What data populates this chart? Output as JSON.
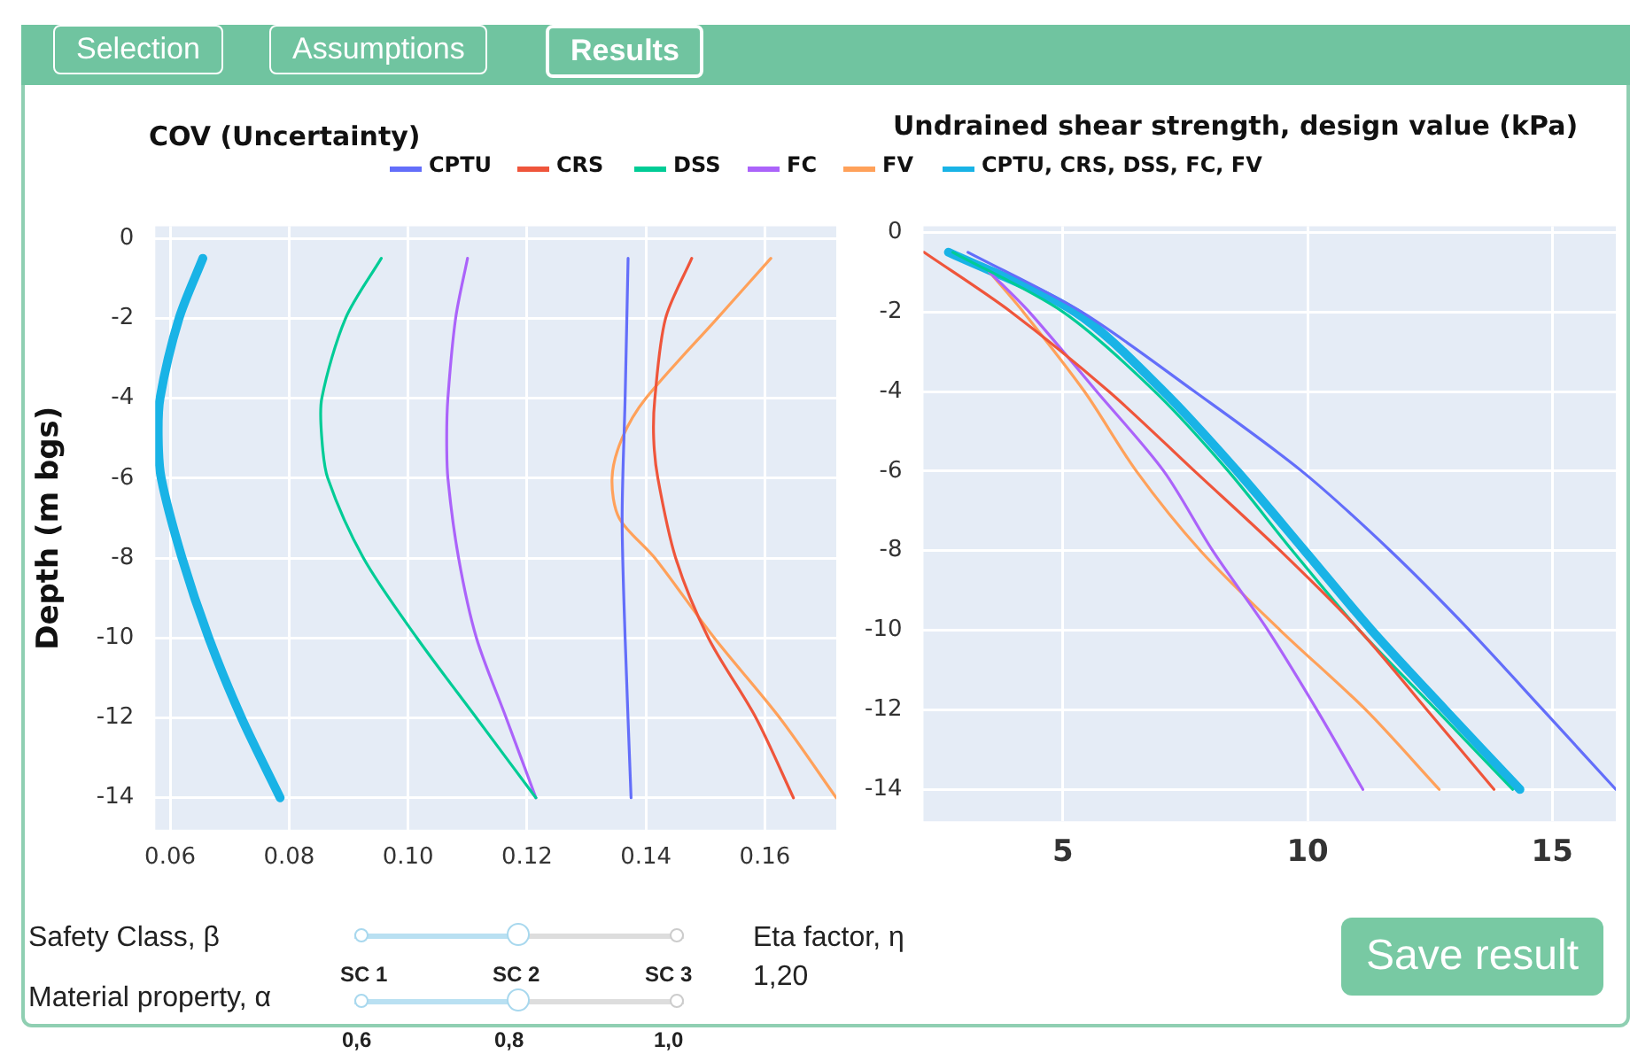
{
  "chart_data": [
    {
      "type": "line",
      "title": "COV (Uncertainty)",
      "ylabel": "Depth (m bgs)",
      "legend": "top",
      "grid": true,
      "xlim": [
        0.0575,
        0.172
      ],
      "xticks": [
        0.06,
        0.08,
        {
          "value": 0.1,
          "label": "0.10"
        },
        0.12,
        0.14,
        0.16
      ],
      "ylim": [
        -14.8,
        0.3
      ],
      "yticks": [
        0,
        -2,
        -4,
        -6,
        -8,
        -10,
        -12,
        -14
      ],
      "series": [
        {
          "name": "CPTU",
          "color": "#636efa",
          "x": [
            0.137,
            0.1365,
            0.136,
            0.1365,
            0.1375
          ],
          "values": [
            -0.5,
            -4,
            -7,
            -10,
            -14
          ]
        },
        {
          "name": "CRS",
          "color": "#ef553b",
          "x": [
            0.1477,
            0.1433,
            0.1415,
            0.1413,
            0.142,
            0.145,
            0.1505,
            0.1585,
            0.1648
          ],
          "values": [
            -0.5,
            -2,
            -4,
            -5,
            -6,
            -8,
            -10,
            -12,
            -14
          ]
        },
        {
          "name": "DSS",
          "color": "#00cc96",
          "x": [
            0.0955,
            0.0895,
            0.0855,
            0.0855,
            0.0865,
            0.0925,
            0.1015,
            0.1115,
            0.1215
          ],
          "values": [
            -0.5,
            -2,
            -4,
            -5,
            -6,
            -8,
            -10,
            -12,
            -14
          ]
        },
        {
          "name": "FC",
          "color": "#ab63fa",
          "x": [
            0.11,
            0.108,
            0.1067,
            0.1065,
            0.1067,
            0.1085,
            0.1115,
            0.1165,
            0.1215
          ],
          "values": [
            -0.5,
            -2,
            -4,
            -5,
            -6,
            -8,
            -10,
            -12,
            -14
          ]
        },
        {
          "name": "FV",
          "color": "#ffa15a",
          "x": [
            0.161,
            0.152,
            0.14,
            0.136,
            0.1343,
            0.1355,
            0.1415,
            0.1515,
            0.1625,
            0.172
          ],
          "values": [
            -0.5,
            -2,
            -4,
            -5,
            -6,
            -7,
            -8,
            -10,
            -12,
            -14
          ]
        },
        {
          "name": "CPTU, CRS, DSS, FC, FV",
          "color": "#19b3e6",
          "x": [
            0.0655,
            0.0615,
            0.0583,
            0.058,
            0.0585,
            0.062,
            0.0665,
            0.072,
            0.0785
          ],
          "values": [
            -0.5,
            -2,
            -4,
            -5,
            -6,
            -8,
            -10,
            -12,
            -14
          ]
        }
      ]
    },
    {
      "type": "line",
      "title": "Undrained shear strength, design value (kPa)",
      "grid": true,
      "xlim": [
        2.15,
        16.3
      ],
      "xticks": [
        5,
        10,
        15
      ],
      "ylim": [
        -14.8,
        0.15
      ],
      "yticks": [
        0,
        -2,
        -4,
        -6,
        -8,
        -10,
        -12,
        -14
      ],
      "series": [
        {
          "color": "#636efa",
          "x": [
            3.06,
            5.38,
            7.69,
            9.88,
            11.69,
            13.31,
            14.81,
            16.3
          ],
          "values": [
            -0.5,
            -2,
            -4,
            -6,
            -8,
            -10,
            -12,
            -14
          ]
        },
        {
          "color": "#ef553b",
          "x": [
            2.16,
            3.94,
            5.94,
            7.69,
            9.44,
            11.06,
            12.44,
            13.81
          ],
          "values": [
            -0.5,
            -2,
            -4,
            -6,
            -8,
            -10,
            -12,
            -14
          ]
        },
        {
          "color": "#00cc96",
          "x": [
            2.75,
            5.0,
            6.88,
            8.38,
            9.69,
            11.06,
            12.63,
            14.19
          ],
          "values": [
            -0.5,
            -2,
            -4,
            -6,
            -8,
            -10,
            -12,
            -14
          ]
        },
        {
          "color": "#ab63fa",
          "x": [
            3.5,
            4.31,
            5.69,
            7.06,
            8.06,
            9.19,
            10.19,
            11.13
          ],
          "values": [
            -1,
            -2,
            -4,
            -6,
            -8,
            -10,
            -12,
            -14
          ]
        },
        {
          "color": "#ffa15a",
          "x": [
            3.5,
            4.19,
            5.44,
            6.5,
            7.81,
            9.44,
            11.19,
            12.69
          ],
          "values": [
            -1,
            -2,
            -4,
            -6,
            -8,
            -10,
            -12,
            -14
          ]
        },
        {
          "color": "#19b3e6",
          "x": [
            2.66,
            5.25,
            7.06,
            8.56,
            9.94,
            11.31,
            12.81,
            14.34
          ],
          "values": [
            -0.5,
            -2,
            -4,
            -6,
            -8,
            -10,
            -12,
            -14
          ]
        }
      ]
    },
    {
      "type": "other",
      "annotations": [
        "Selection",
        "Assumptions",
        "Results",
        "Safety Class, β",
        "SC 1",
        "SC 2",
        "SC 3",
        "Material property, α",
        "0,6",
        "0,8",
        "1,0",
        "Eta factor, η",
        "1,20",
        "Save result"
      ]
    }
  ]
}
